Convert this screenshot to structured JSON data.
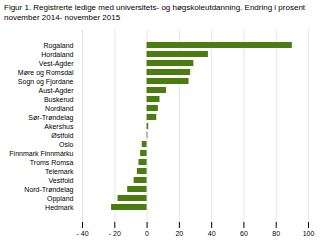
{
  "chart_data": {
    "type": "bar",
    "orientation": "horizontal",
    "title": "Figur 1. Registrerte ledige med universitets- og høgskoleutdanning. Endring i prosent\nnovember 2014- november 2015",
    "categories": [
      "Rogaland",
      "Hordaland",
      "Vest-Agder",
      "Møre og Romsdal",
      "Sogn og Fjordane",
      "Aust-Agder",
      "Buskerud",
      "Nordland",
      "Sør-Trøndelag",
      "Akershus",
      "Østfold",
      "Oslo",
      "Finnmark Finnmárku",
      "Troms Romsa",
      "Telemark",
      "Vestfold",
      "Nord-Trøndelag",
      "Oppland",
      "Hedmark"
    ],
    "values": [
      90,
      38,
      29,
      27,
      26,
      12,
      8,
      7,
      6,
      1,
      0.5,
      -3,
      -4,
      -5,
      -6,
      -8,
      -12,
      -18,
      -22
    ],
    "color": "#4a7c10",
    "xlim": [
      -40,
      100
    ],
    "xticks": [
      {
        "value": -40,
        "label": "- 40"
      },
      {
        "value": -20,
        "label": "- 20"
      },
      0,
      20,
      40,
      60,
      80,
      100
    ],
    "grid": true
  }
}
